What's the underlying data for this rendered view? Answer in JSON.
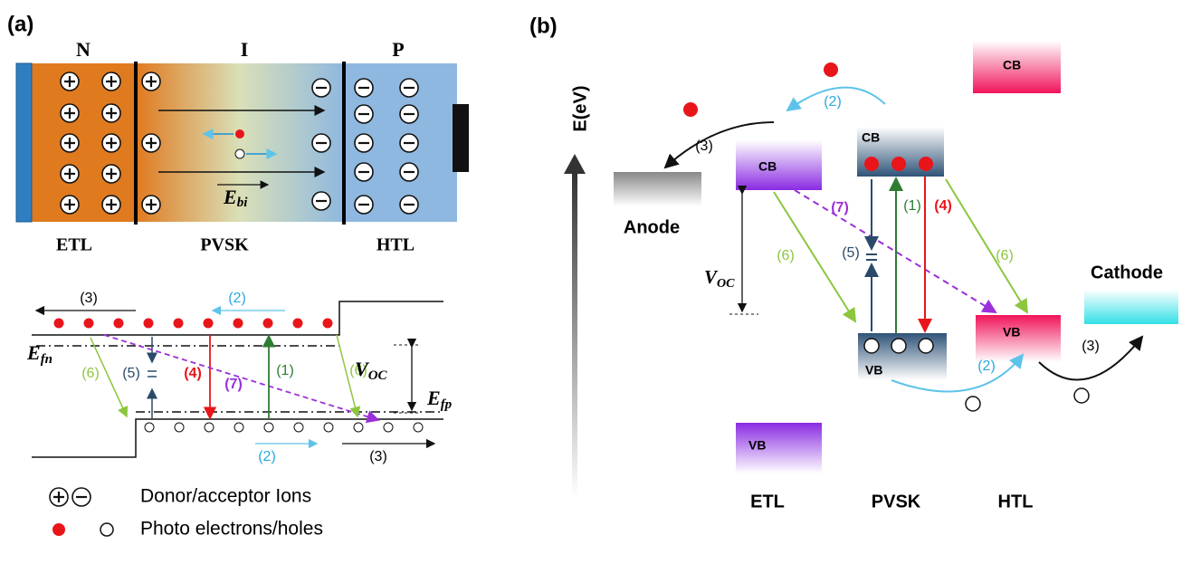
{
  "panel_a": {
    "label": "(a)",
    "regions": [
      "N",
      "I",
      "P"
    ],
    "layers": [
      "ETL",
      "PVSK",
      "HTL"
    ],
    "field": {
      "symbol": "E",
      "sub": "bi"
    },
    "band": {
      "labels": [
        "(3)",
        "(2)",
        "(6)",
        "(5)",
        "(4)",
        "(7)",
        "(1)",
        "(6)",
        "(2)",
        "(3)"
      ],
      "efn": {
        "symbol": "E",
        "sub": "fn"
      },
      "efp": {
        "symbol": "E",
        "sub": "fp"
      },
      "voc": {
        "symbol": "V",
        "sub": "OC"
      }
    },
    "legend": [
      "Donor/acceptor Ions",
      "Photo electrons/holes"
    ]
  },
  "panel_b": {
    "label": "(b)",
    "axis": "E(eV)",
    "electrodes": [
      "Anode",
      "Cathode"
    ],
    "cb": [
      "CB",
      "CB",
      "CB"
    ],
    "vb": [
      "VB",
      "VB",
      "VB"
    ],
    "layers": [
      "ETL",
      "PVSK",
      "HTL"
    ],
    "labels": [
      "(3)",
      "(2)",
      "(7)",
      "(6)",
      "(1)",
      "(4)",
      "(5)",
      "(6)",
      "(2)",
      "(3)"
    ],
    "voc": {
      "symbol": "V",
      "sub": "OC"
    }
  }
}
